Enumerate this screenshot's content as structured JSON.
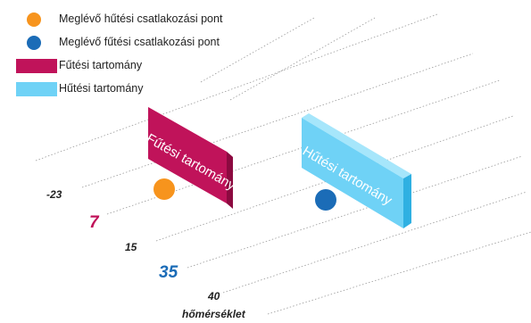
{
  "legend": [
    {
      "kind": "dot",
      "color": "#f7941d",
      "label": "Meglévő hűtési csatlakozási pont",
      "icon": "orange-dot-icon"
    },
    {
      "kind": "dot",
      "color": "#1b6cb7",
      "label": "Meglévő fűtési csatlakozási pont",
      "icon": "blue-dot-icon"
    },
    {
      "kind": "rect",
      "color": "#c0135a",
      "label": "Fűtési tartomány",
      "icon": "heating-range-swatch"
    },
    {
      "kind": "rect",
      "color": "#6fd2f6",
      "label": "Hűtési tartomány",
      "icon": "cooling-range-swatch"
    }
  ],
  "scale": {
    "ticks": [
      {
        "value": "-23",
        "color": "#222222",
        "highlight": false
      },
      {
        "value": "7",
        "color": "#c0135a",
        "highlight": true
      },
      {
        "value": "15",
        "color": "#222222",
        "highlight": false
      },
      {
        "value": "35",
        "color": "#1b6cb7",
        "highlight": true
      },
      {
        "value": "40",
        "color": "#222222",
        "highlight": false
      }
    ],
    "axis_label": "hőmérséklet"
  },
  "blocks": {
    "heating": {
      "label": "Fűtési tartomány",
      "front": "#c0135a",
      "top": "#e0447f",
      "side": "#8c0a40"
    },
    "cooling": {
      "label": "Hűtési tartomány",
      "front": "#6fd2f6",
      "top": "#a6e6fb",
      "side": "#2fb0e2"
    }
  },
  "points": {
    "cooling_point": {
      "color": "#f7941d"
    },
    "heating_point": {
      "color": "#1b6cb7"
    }
  }
}
